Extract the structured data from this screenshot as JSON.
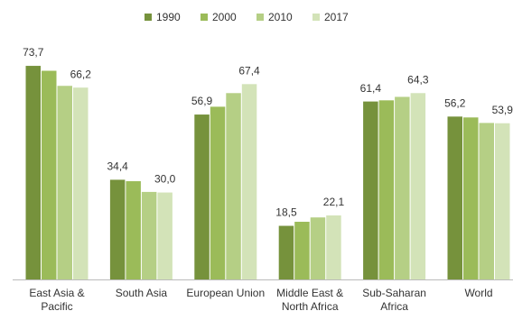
{
  "chart_data": {
    "type": "bar",
    "categories": [
      "East Asia & Pacific",
      "South Asia",
      "European Union",
      "Middle East & North Africa",
      "Sub-Saharan Africa",
      "World"
    ],
    "series": [
      {
        "name": "1990",
        "color": "#76923c",
        "values": [
          73.7,
          34.4,
          56.9,
          18.5,
          61.4,
          56.2
        ],
        "value_labels": [
          "73,7",
          "34,4",
          "56,9",
          "18,5",
          "61,4",
          "56,2"
        ]
      },
      {
        "name": "2000",
        "color": "#9bbb59",
        "values": [
          72.0,
          33.9,
          59.6,
          19.9,
          61.8,
          55.9
        ]
      },
      {
        "name": "2010",
        "color": "#b5cf85",
        "values": [
          66.8,
          30.2,
          64.3,
          21.4,
          63.0,
          54.0
        ]
      },
      {
        "name": "2017",
        "color": "#d3e3b8",
        "values": [
          66.2,
          30.0,
          67.4,
          22.1,
          64.3,
          53.9
        ],
        "value_labels": [
          "66,2",
          "30,0",
          "67,4",
          "22,1",
          "64,3",
          "53,9"
        ]
      }
    ],
    "legend": "top"
  }
}
